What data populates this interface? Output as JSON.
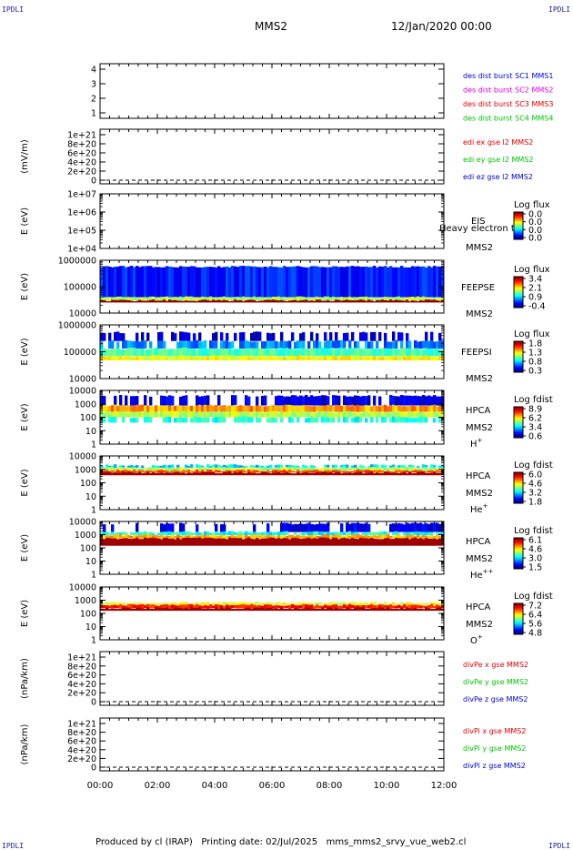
{
  "corners": {
    "tl": "IPDLI",
    "tr": "IPDLI",
    "bl": "IPDLI",
    "br": "IPDLI"
  },
  "header": {
    "title": "MMS2",
    "date": "12/Jan/2020 00:00"
  },
  "footer": {
    "producer": "Produced by cl (IRAP)",
    "printing": "Printing date: 02/Jul/2025",
    "script": "mms_mms2_srvy_vue_web2.cl"
  },
  "colors": {
    "blue": "#0000c8",
    "magenta": "#e000e0",
    "red": "#e00000",
    "green": "#00c000"
  },
  "chart_data": {
    "type": "heatmap",
    "x_ticks": [
      "00:00",
      "02:00",
      "04:00",
      "06:00",
      "08:00",
      "10:00",
      "12:00"
    ],
    "xlim_hours": [
      0,
      12
    ],
    "panels": [
      {
        "id": "quality",
        "type": "line",
        "ylabel": "",
        "yticks": [
          "4",
          "3",
          "2",
          "1"
        ],
        "ylim": [
          0.5,
          4.5
        ],
        "legend": [
          {
            "text": "des dist burst SC1 MMS1",
            "color": "#0000c8"
          },
          {
            "text": "des dist burst SC2 MMS2",
            "color": "#e000e0"
          },
          {
            "text": "des dist burst SC3 MMS3",
            "color": "#e00000"
          },
          {
            "text": "des dist burst SC4 MMS4",
            "color": "#00c000"
          }
        ]
      },
      {
        "id": "edi",
        "type": "line",
        "ylabel": "(mV/m)",
        "yticks": [
          "1e+21",
          "8e+20",
          "6e+20",
          "4e+20",
          "2e+20",
          "0"
        ],
        "ylim": [
          0,
          1e+21
        ],
        "zero_line": true,
        "legend": [
          {
            "text": "edi ex gse l2 MMS2",
            "color": "#e00000"
          },
          {
            "text": "edi ey gse l2 MMS2",
            "color": "#00c000"
          },
          {
            "text": "edi ez gse l2 MMS2",
            "color": "#0000c8"
          }
        ]
      },
      {
        "id": "eis",
        "type": "heatmap",
        "ylabel": "E (eV)",
        "yticks": [
          "1e+07",
          "1e+06",
          "1e+05",
          "1e+04"
        ],
        "log": true,
        "instrument": "EIS",
        "extra": "Heavy electron to",
        "sc": "MMS2",
        "cbar_title": "Log flux",
        "cbar_ticks": [
          "0.0",
          "0.0",
          "0.0",
          "0.0"
        ]
      },
      {
        "id": "feepse",
        "type": "heatmap",
        "ylabel": "E (eV)",
        "yticks": [
          "1000000",
          "100000",
          "10000"
        ],
        "log": true,
        "instrument": "FEEPSE",
        "sc": "MMS2",
        "cbar_title": "Log flux",
        "cbar_ticks": [
          "3.4",
          "2.1",
          "0.9",
          "-0.4"
        ]
      },
      {
        "id": "feepsi",
        "type": "heatmap",
        "ylabel": "E (eV)",
        "yticks": [
          "1000000",
          "100000",
          "10000"
        ],
        "log": true,
        "instrument": "FEEPSI",
        "sc": "MMS2",
        "cbar_title": "Log flux",
        "cbar_ticks": [
          "1.8",
          "1.3",
          "0.8",
          "0.3"
        ]
      },
      {
        "id": "hpca_h",
        "type": "heatmap",
        "ylabel": "E (eV)",
        "yticks": [
          "10000",
          "1000",
          "100",
          "10",
          "1"
        ],
        "log": true,
        "instrument": "HPCA",
        "sc": "MMS2",
        "species": "H",
        "charge": "+",
        "cbar_title": "Log fdist",
        "cbar_ticks": [
          "8.9",
          "6.2",
          "3.4",
          "0.6"
        ]
      },
      {
        "id": "hpca_he",
        "type": "heatmap",
        "ylabel": "E (eV)",
        "yticks": [
          "10000",
          "1000",
          "100",
          "10",
          "1"
        ],
        "log": true,
        "instrument": "HPCA",
        "sc": "MMS2",
        "species": "He",
        "charge": "+",
        "cbar_title": "Log fdist",
        "cbar_ticks": [
          "6.0",
          "4.6",
          "3.2",
          "1.8"
        ]
      },
      {
        "id": "hpca_hepp",
        "type": "heatmap",
        "ylabel": "E (eV)",
        "yticks": [
          "10000",
          "1000",
          "100",
          "10",
          "1"
        ],
        "log": true,
        "instrument": "HPCA",
        "sc": "MMS2",
        "species": "He",
        "charge": "++",
        "cbar_title": "Log fdist",
        "cbar_ticks": [
          "6.1",
          "4.6",
          "3.0",
          "1.5"
        ]
      },
      {
        "id": "hpca_o",
        "type": "heatmap",
        "ylabel": "E (eV)",
        "yticks": [
          "10000",
          "1000",
          "100",
          "10",
          "1"
        ],
        "log": true,
        "instrument": "HPCA",
        "sc": "MMS2",
        "species": "O",
        "charge": "+",
        "cbar_title": "Log fdist",
        "cbar_ticks": [
          "7.2",
          "6.4",
          "5.6",
          "4.8"
        ]
      },
      {
        "id": "divpe",
        "type": "line",
        "ylabel": "(nPa/km)",
        "yticks": [
          "1e+21",
          "8e+20",
          "6e+20",
          "4e+20",
          "2e+20",
          "0"
        ],
        "ylim": [
          0,
          1e+21
        ],
        "zero_line": true,
        "legend": [
          {
            "text": "divPe x gse MMS2",
            "color": "#e00000"
          },
          {
            "text": "divPe y gse MMS2",
            "color": "#00c000"
          },
          {
            "text": "divPe z gse MMS2",
            "color": "#0000c8"
          }
        ]
      },
      {
        "id": "divpi",
        "type": "line",
        "ylabel": "(nPa/km)",
        "yticks": [
          "1e+21",
          "8e+20",
          "6e+20",
          "4e+20",
          "2e+20",
          "0"
        ],
        "ylim": [
          0,
          1e+21
        ],
        "zero_line": true,
        "legend": [
          {
            "text": "divPi x gse MMS2",
            "color": "#e00000"
          },
          {
            "text": "divPi y gse MMS2",
            "color": "#00c000"
          },
          {
            "text": "divPi z gse MMS2",
            "color": "#0000c8"
          }
        ]
      }
    ]
  }
}
